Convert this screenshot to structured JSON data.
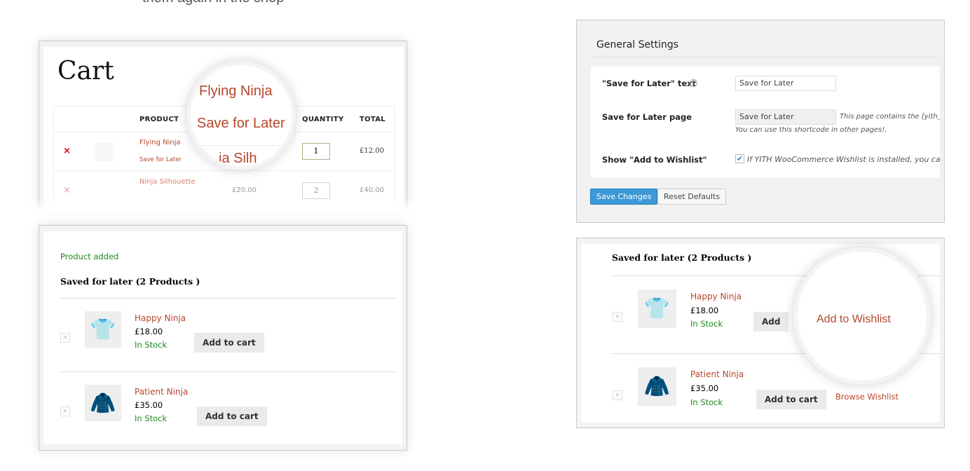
{
  "intro_text": "them again in the shop",
  "cart": {
    "title": "Cart",
    "headers": [
      "PRODUCT",
      "QUANTITY",
      "TOTAL"
    ],
    "rows": [
      {
        "name": "Flying Ninja",
        "save_link": "Save for Later",
        "price": "",
        "qty": "1",
        "total": "£12.00"
      },
      {
        "name": "Ninja Silhouette",
        "price": "£20.00",
        "qty": "2",
        "total": "£40.00"
      }
    ],
    "magnifier": {
      "line1": "Flying Ninja",
      "line2": "Save for Later",
      "line3": "ja Silh"
    }
  },
  "saved_left": {
    "notice": "Product added",
    "heading": "Saved for later (2 Products )",
    "items": [
      {
        "name": "Happy Ninja",
        "price": "£18.00",
        "stock": "In Stock",
        "button": "Add to cart"
      },
      {
        "name": "Patient Ninja",
        "price": "£35.00",
        "stock": "In Stock",
        "button": "Add to cart"
      }
    ]
  },
  "settings": {
    "title": "General Settings",
    "rows": [
      {
        "label": "\"Save for Later\" text",
        "value": "Save for Later"
      },
      {
        "label": "Save for Later page",
        "value": "Save for Later",
        "desc": "This page contains the [yith_ws",
        "desc2": "You can use this shortcode in other pages!."
      },
      {
        "label": "Show \"Add to Wishlist\"",
        "checked": true,
        "desc": "If YITH WooCommerce Wishlist is installed, you can dis"
      }
    ],
    "save_button": "Save Changes",
    "reset_button": "Reset Defaults"
  },
  "saved_right": {
    "heading": "Saved for later (2 Products )",
    "items": [
      {
        "name": "Happy Ninja",
        "price": "£18.00",
        "stock": "In Stock",
        "button": "Add"
      },
      {
        "name": "Patient Ninja",
        "price": "£35.00",
        "stock": "In Stock",
        "button": "Add to cart",
        "wishlist": "Browse Wishlist"
      }
    ],
    "magnifier": "Add to Wishlist"
  },
  "colors": {
    "accent": "#b5462b",
    "stock": "#1e8a1e",
    "primary_button": "#3d9ad6"
  }
}
